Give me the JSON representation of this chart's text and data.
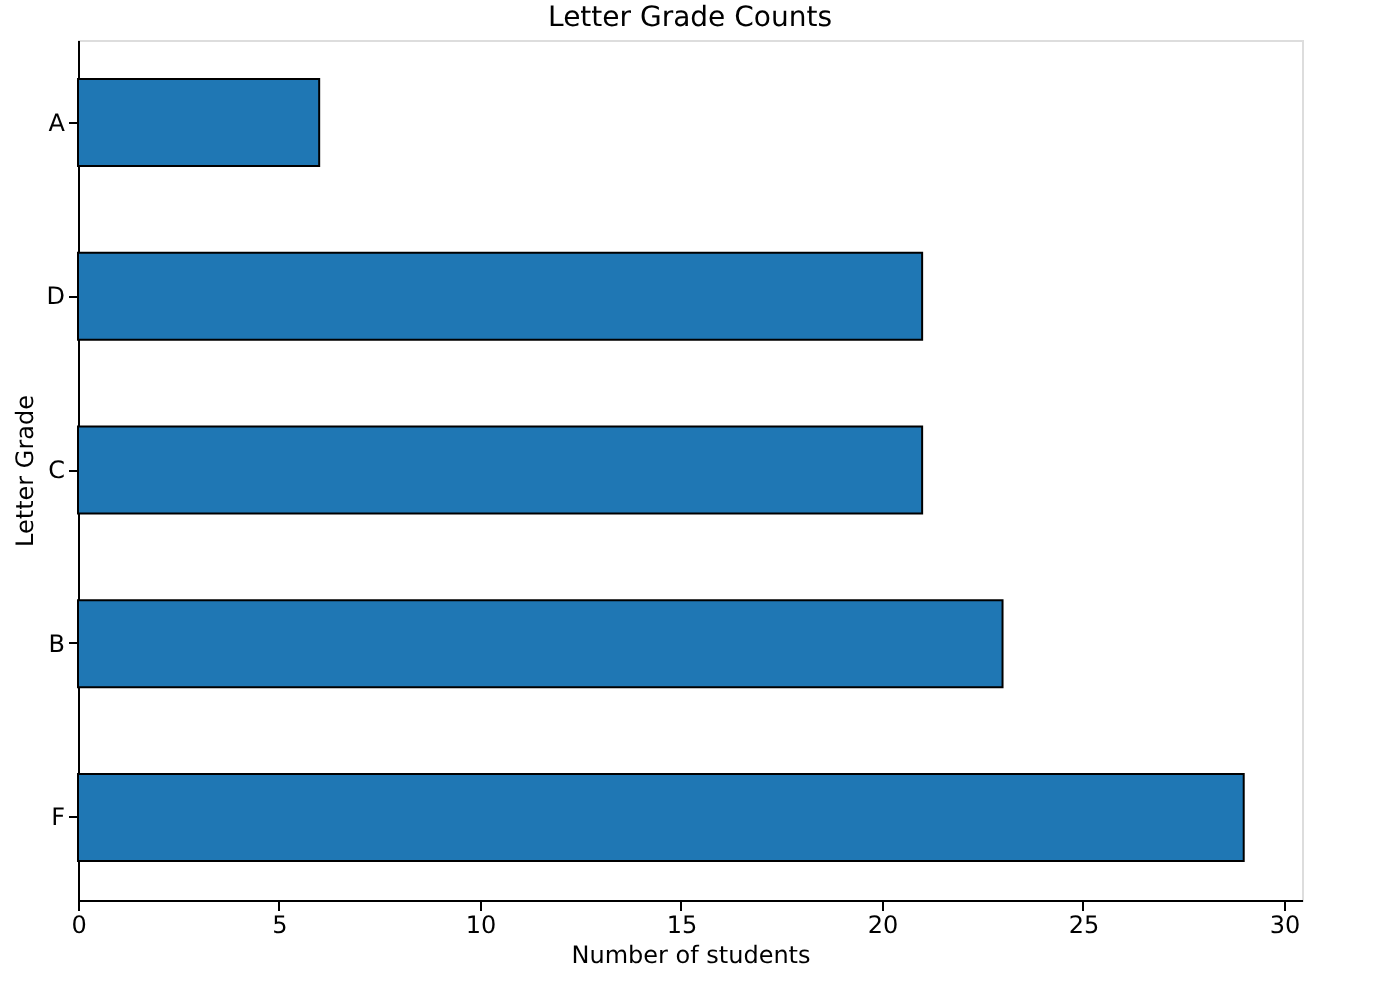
{
  "chart_data": {
    "type": "bar",
    "orientation": "horizontal",
    "title": "Letter Grade Counts",
    "xlabel": "Number of students",
    "ylabel": "Letter Grade",
    "categories": [
      "A",
      "D",
      "C",
      "B",
      "F"
    ],
    "values": [
      6,
      21,
      21,
      23,
      29
    ],
    "color": "#1f77b4",
    "xlim": [
      0,
      30.45
    ],
    "xticks": [
      0,
      5,
      10,
      15,
      20,
      25,
      30
    ],
    "grid": false
  }
}
